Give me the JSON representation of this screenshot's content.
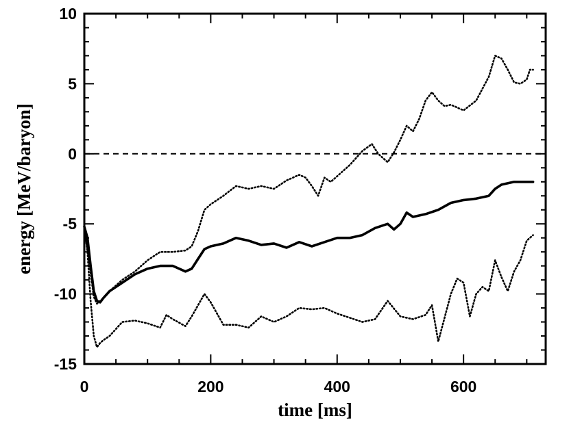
{
  "chart_data": {
    "type": "line",
    "title": "",
    "xlabel": "time [ms]",
    "ylabel": "energy [MeV/baryon]",
    "xlim": [
      0,
      730
    ],
    "ylim": [
      -15,
      10
    ],
    "xticks": [
      0,
      200,
      400,
      600
    ],
    "yticks": [
      10,
      5,
      0,
      -5,
      -10,
      -15
    ],
    "reference_line": {
      "y": 0,
      "style": "dashed"
    },
    "grid": false,
    "legend": "none",
    "series": [
      {
        "style": "dotted",
        "x": [
          0,
          5,
          10,
          15,
          20,
          25,
          30,
          40,
          50,
          60,
          80,
          100,
          120,
          140,
          160,
          170,
          180,
          190,
          200,
          210,
          220,
          240,
          260,
          280,
          300,
          310,
          320,
          340,
          350,
          360,
          370,
          380,
          390,
          400,
          420,
          440,
          455,
          465,
          480,
          490,
          500,
          510,
          520,
          530,
          540,
          550,
          560,
          570,
          580,
          600,
          620,
          640,
          650,
          660,
          670,
          680,
          690,
          700,
          705,
          710
        ],
        "values": [
          -5.5,
          -6.8,
          -8.5,
          -10.2,
          -10.7,
          -10.5,
          -10.3,
          -9.8,
          -9.4,
          -9.0,
          -8.4,
          -7.6,
          -7.0,
          -7.0,
          -6.9,
          -6.6,
          -5.5,
          -4.0,
          -3.6,
          -3.3,
          -3.0,
          -2.3,
          -2.5,
          -2.3,
          -2.5,
          -2.2,
          -1.9,
          -1.5,
          -1.7,
          -2.3,
          -3.0,
          -1.7,
          -2.0,
          -1.6,
          -0.8,
          0.2,
          0.7,
          0.0,
          -0.6,
          0.1,
          1.0,
          2.0,
          1.6,
          2.5,
          3.8,
          4.4,
          3.8,
          3.4,
          3.5,
          3.1,
          3.8,
          5.5,
          7.0,
          6.8,
          6.0,
          5.1,
          5.0,
          5.3,
          6.0,
          6.0
        ]
      },
      {
        "style": "solid",
        "x": [
          0,
          5,
          10,
          15,
          20,
          25,
          30,
          40,
          60,
          80,
          100,
          120,
          140,
          160,
          170,
          180,
          190,
          200,
          220,
          240,
          260,
          280,
          300,
          320,
          340,
          360,
          380,
          400,
          420,
          440,
          460,
          480,
          490,
          500,
          510,
          520,
          540,
          560,
          580,
          600,
          620,
          640,
          650,
          660,
          680,
          700,
          710
        ],
        "values": [
          -5.2,
          -6.0,
          -8.0,
          -9.8,
          -10.5,
          -10.6,
          -10.3,
          -9.8,
          -9.2,
          -8.6,
          -8.2,
          -8.0,
          -8.0,
          -8.4,
          -8.2,
          -7.5,
          -6.8,
          -6.6,
          -6.4,
          -6.0,
          -6.2,
          -6.5,
          -6.4,
          -6.7,
          -6.3,
          -6.6,
          -6.3,
          -6.0,
          -6.0,
          -5.8,
          -5.3,
          -5.0,
          -5.4,
          -5.0,
          -4.2,
          -4.5,
          -4.3,
          -4.0,
          -3.5,
          -3.3,
          -3.2,
          -3.0,
          -2.5,
          -2.2,
          -2.0,
          -2.0,
          -2.0
        ]
      },
      {
        "style": "dotted",
        "x": [
          0,
          5,
          10,
          15,
          20,
          25,
          30,
          40,
          50,
          60,
          80,
          100,
          120,
          130,
          140,
          160,
          170,
          190,
          200,
          220,
          240,
          260,
          280,
          300,
          320,
          340,
          360,
          380,
          400,
          420,
          440,
          460,
          480,
          500,
          520,
          540,
          550,
          560,
          570,
          580,
          590,
          600,
          610,
          620,
          630,
          640,
          650,
          660,
          670,
          680,
          690,
          700,
          710
        ],
        "values": [
          -5.2,
          -7.0,
          -10.5,
          -13.0,
          -13.8,
          -13.5,
          -13.3,
          -13.0,
          -12.5,
          -12.0,
          -11.9,
          -12.1,
          -12.4,
          -11.5,
          -11.8,
          -12.3,
          -11.6,
          -10.0,
          -10.6,
          -12.2,
          -12.2,
          -12.4,
          -11.6,
          -12.0,
          -11.6,
          -11.0,
          -11.1,
          -11.0,
          -11.4,
          -11.7,
          -12.0,
          -11.8,
          -10.5,
          -11.6,
          -11.8,
          -11.5,
          -10.8,
          -13.4,
          -11.7,
          -10.0,
          -8.9,
          -9.2,
          -11.6,
          -10.0,
          -9.5,
          -9.8,
          -7.6,
          -8.8,
          -9.8,
          -8.4,
          -7.6,
          -6.2,
          -5.8
        ]
      }
    ]
  }
}
